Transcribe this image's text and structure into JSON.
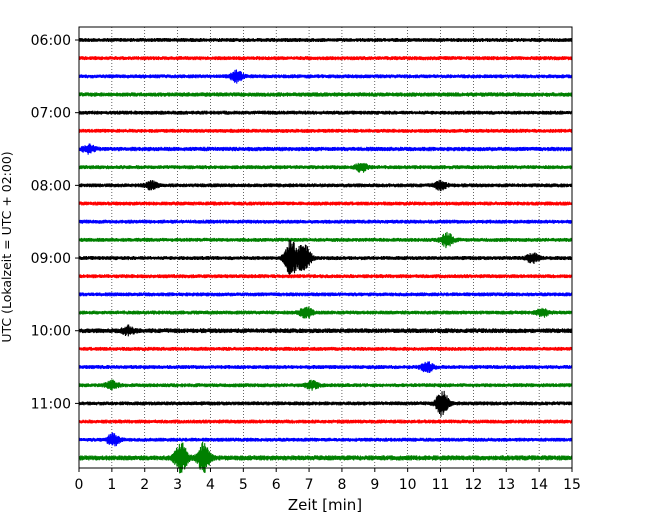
{
  "chart_data": {
    "type": "line",
    "title": "",
    "xlabel": "Zeit  [min]",
    "ylabel": "UTC (Lokalzeit = UTC + 02:00)",
    "xlim": [
      0,
      15
    ],
    "xticks": [
      "0",
      "1",
      "2",
      "3",
      "4",
      "5",
      "6",
      "7",
      "8",
      "9",
      "10",
      "11",
      "12",
      "13",
      "14",
      "15"
    ],
    "yticks": [
      {
        "label": "06:00",
        "trace": 0
      },
      {
        "label": "07:00",
        "trace": 4
      },
      {
        "label": "08:00",
        "trace": 8
      },
      {
        "label": "09:00",
        "trace": 12
      },
      {
        "label": "10:00",
        "trace": 16
      },
      {
        "label": "11:00",
        "trace": 20
      }
    ],
    "grid": "vertical-dotted",
    "trace_colors": [
      "#000000",
      "#ff0000",
      "#0000ff",
      "#008000"
    ],
    "traces": [
      {
        "start": "06:00",
        "color": "#000000",
        "amp": 1.0,
        "events": []
      },
      {
        "start": "06:15",
        "color": "#ff0000",
        "amp": 1.0,
        "events": []
      },
      {
        "start": "06:30",
        "color": "#0000ff",
        "amp": 1.0,
        "events": [
          {
            "t": 4.8,
            "a": 2.2
          }
        ]
      },
      {
        "start": "06:45",
        "color": "#008000",
        "amp": 1.1,
        "events": []
      },
      {
        "start": "07:00",
        "color": "#000000",
        "amp": 1.0,
        "events": []
      },
      {
        "start": "07:15",
        "color": "#ff0000",
        "amp": 1.0,
        "events": []
      },
      {
        "start": "07:30",
        "color": "#0000ff",
        "amp": 1.1,
        "events": [
          {
            "t": 0.3,
            "a": 1.5
          }
        ]
      },
      {
        "start": "07:45",
        "color": "#008000",
        "amp": 1.0,
        "events": [
          {
            "t": 8.6,
            "a": 1.8
          }
        ]
      },
      {
        "start": "08:00",
        "color": "#000000",
        "amp": 1.0,
        "events": [
          {
            "t": 2.2,
            "a": 1.6
          },
          {
            "t": 11.0,
            "a": 1.6
          }
        ]
      },
      {
        "start": "08:15",
        "color": "#ff0000",
        "amp": 1.0,
        "events": []
      },
      {
        "start": "08:30",
        "color": "#0000ff",
        "amp": 1.0,
        "events": []
      },
      {
        "start": "08:45",
        "color": "#008000",
        "amp": 1.0,
        "events": [
          {
            "t": 11.2,
            "a": 2.8
          }
        ]
      },
      {
        "start": "09:00",
        "color": "#000000",
        "amp": 1.0,
        "events": [
          {
            "t": 6.45,
            "a": 7.5
          },
          {
            "t": 6.85,
            "a": 6.5
          },
          {
            "t": 13.8,
            "a": 1.8
          }
        ]
      },
      {
        "start": "09:15",
        "color": "#ff0000",
        "amp": 1.0,
        "events": []
      },
      {
        "start": "09:30",
        "color": "#0000ff",
        "amp": 1.0,
        "events": []
      },
      {
        "start": "09:45",
        "color": "#008000",
        "amp": 1.0,
        "events": [
          {
            "t": 6.9,
            "a": 2.5
          },
          {
            "t": 14.1,
            "a": 1.5
          }
        ]
      },
      {
        "start": "10:00",
        "color": "#000000",
        "amp": 1.2,
        "events": [
          {
            "t": 1.5,
            "a": 1.6
          }
        ]
      },
      {
        "start": "10:15",
        "color": "#ff0000",
        "amp": 1.0,
        "events": []
      },
      {
        "start": "10:30",
        "color": "#0000ff",
        "amp": 1.0,
        "events": [
          {
            "t": 10.6,
            "a": 2.0
          }
        ]
      },
      {
        "start": "10:45",
        "color": "#008000",
        "amp": 1.0,
        "events": [
          {
            "t": 1.0,
            "a": 1.6
          },
          {
            "t": 7.1,
            "a": 1.6
          }
        ]
      },
      {
        "start": "11:00",
        "color": "#000000",
        "amp": 1.0,
        "events": [
          {
            "t": 11.05,
            "a": 5.0
          }
        ]
      },
      {
        "start": "11:15",
        "color": "#ff0000",
        "amp": 1.0,
        "events": []
      },
      {
        "start": "11:30",
        "color": "#0000ff",
        "amp": 1.0,
        "events": [
          {
            "t": 1.05,
            "a": 2.5
          }
        ]
      },
      {
        "start": "11:45",
        "color": "#008000",
        "amp": 1.3,
        "events": [
          {
            "t": 3.1,
            "a": 6.0
          },
          {
            "t": 3.8,
            "a": 6.0
          }
        ]
      }
    ]
  }
}
